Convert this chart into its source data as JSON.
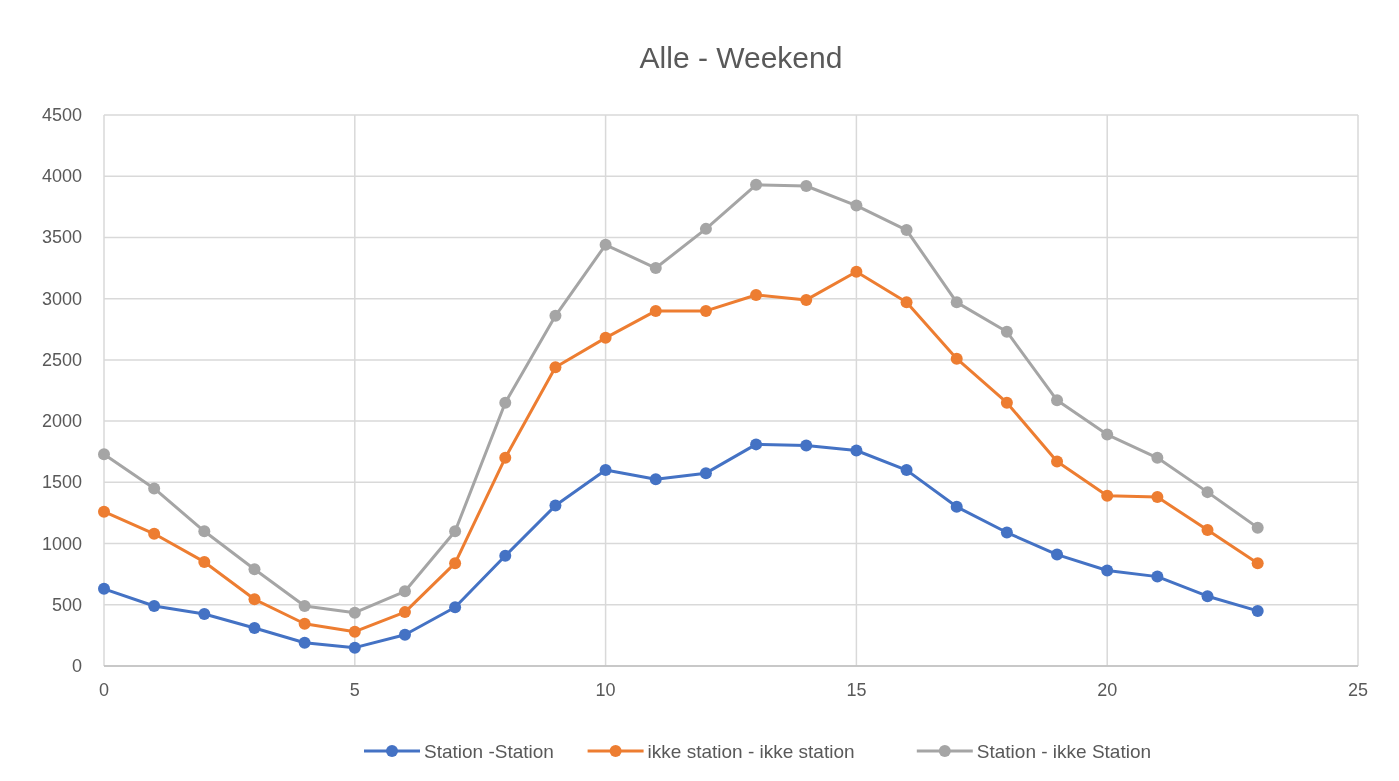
{
  "chart_data": {
    "type": "line",
    "title": "Alle - Weekend",
    "x": [
      0,
      1,
      2,
      3,
      4,
      5,
      6,
      7,
      8,
      9,
      10,
      11,
      12,
      13,
      14,
      15,
      16,
      17,
      18,
      19,
      20,
      21,
      22,
      23
    ],
    "series": [
      {
        "name": "Station -Station",
        "color": "#4472c4",
        "values": [
          630,
          490,
          425,
          310,
          190,
          150,
          255,
          480,
          900,
          1310,
          1600,
          1525,
          1575,
          1810,
          1800,
          1760,
          1600,
          1300,
          1090,
          910,
          780,
          730,
          570,
          450
        ]
      },
      {
        "name": "ikke station - ikke station",
        "color": "#ed7d31",
        "values": [
          1260,
          1080,
          850,
          545,
          345,
          280,
          440,
          840,
          1700,
          2440,
          2680,
          2900,
          2900,
          3030,
          2990,
          3220,
          2970,
          2510,
          2150,
          1670,
          1390,
          1380,
          1110,
          840
        ]
      },
      {
        "name": "Station - ikke Station",
        "color": "#a5a5a5",
        "values": [
          1730,
          1450,
          1100,
          790,
          490,
          435,
          610,
          1100,
          2150,
          2860,
          3440,
          3250,
          3570,
          3930,
          3920,
          3760,
          3560,
          2970,
          2730,
          2170,
          1890,
          1700,
          1420,
          1130
        ]
      }
    ],
    "xlim": [
      0,
      25
    ],
    "xticks": [
      0,
      5,
      10,
      15,
      20,
      25
    ],
    "ylim": [
      0,
      4500
    ],
    "yticks": [
      0,
      500,
      1000,
      1500,
      2000,
      2500,
      3000,
      3500,
      4000,
      4500
    ],
    "grid": true,
    "legend": "bottom",
    "marker": "circle",
    "line_style": "solid"
  }
}
